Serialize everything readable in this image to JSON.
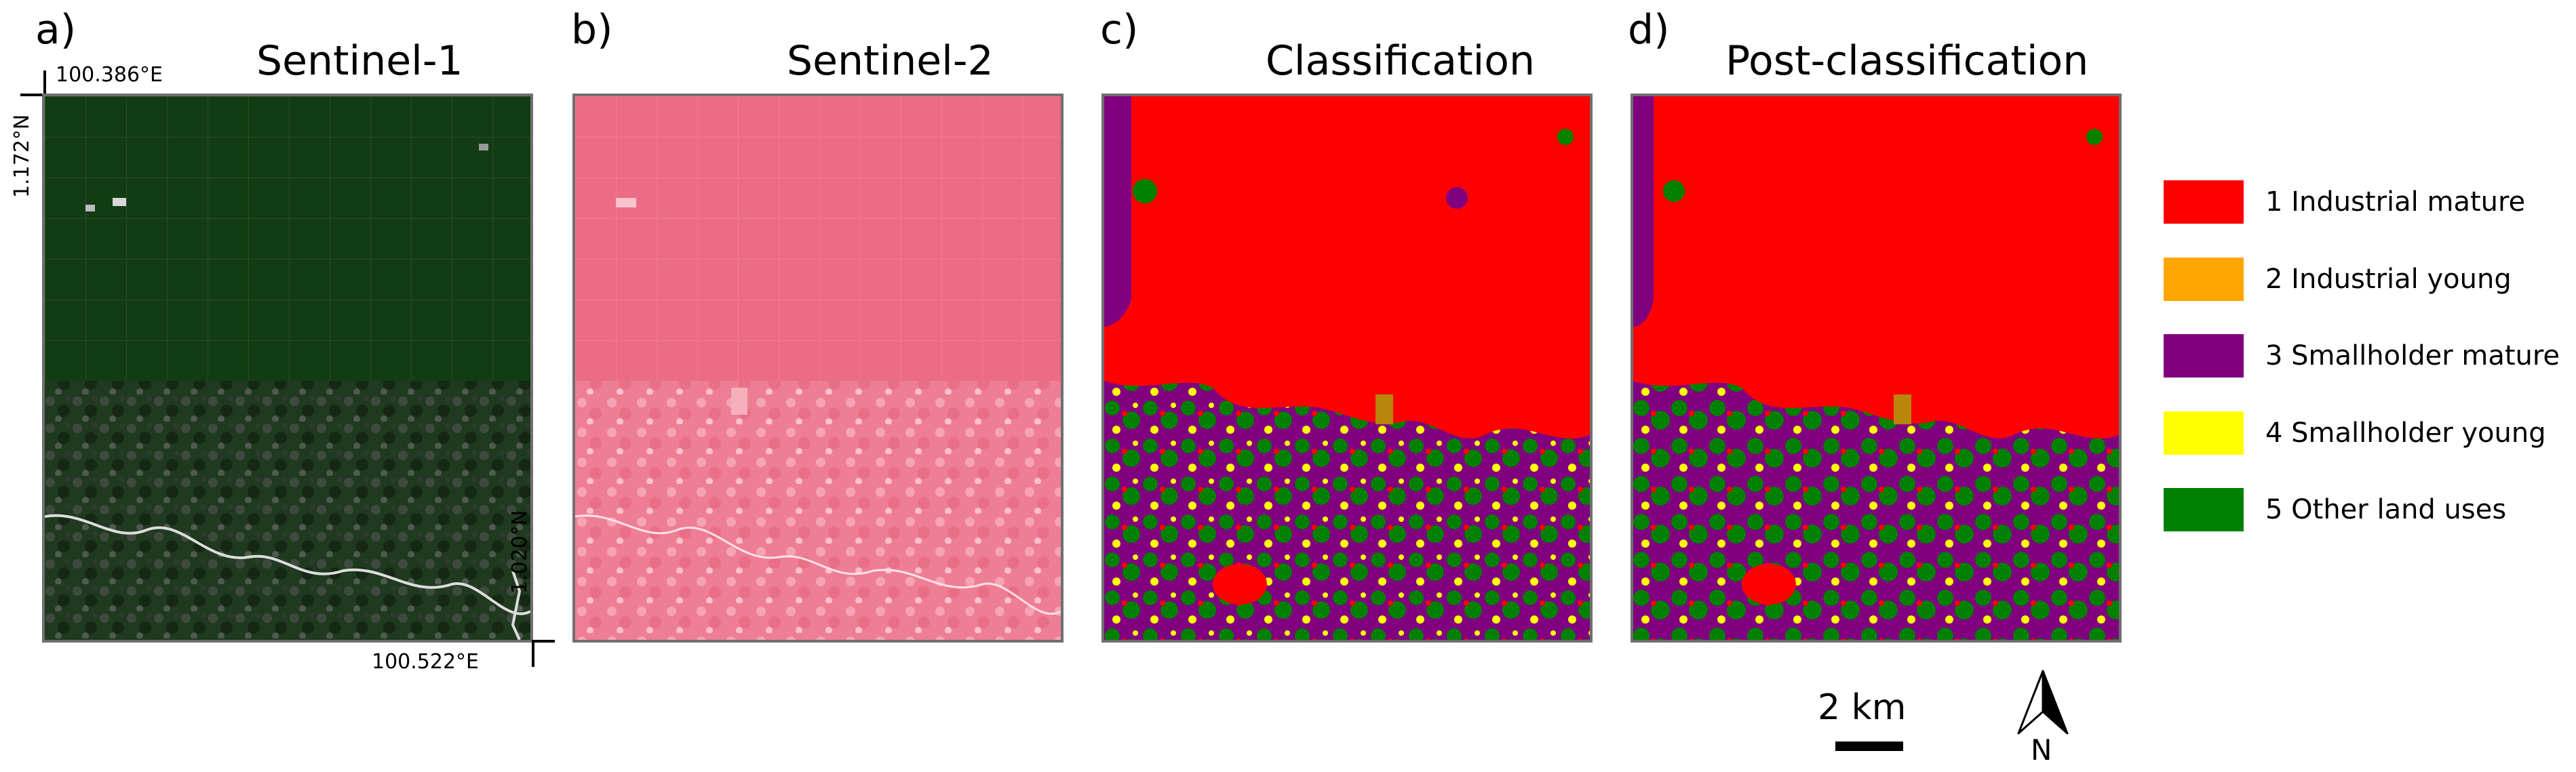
{
  "panels": [
    {
      "letter": "a)",
      "title": "Sentinel-1"
    },
    {
      "letter": "b)",
      "title": "Sentinel-2"
    },
    {
      "letter": "c)",
      "title": "Classification"
    },
    {
      "letter": "d)",
      "title": "Post-classification"
    }
  ],
  "coordinates": {
    "top_left_lon": "100.386°E",
    "top_left_lat": "1.172°N",
    "bottom_right_lat": "1.020°N",
    "bottom_right_lon": "100.522°E"
  },
  "legend": [
    {
      "label": "1 Industrial mature",
      "color": "#ff0000"
    },
    {
      "label": "2 Industrial young",
      "color": "#ffa500"
    },
    {
      "label": "3 Smallholder mature",
      "color": "#800080"
    },
    {
      "label": "4 Smallholder young",
      "color": "#ffff00"
    },
    {
      "label": "5 Other land uses",
      "color": "#008000"
    }
  ],
  "scale_bar": {
    "label": "2 km"
  },
  "north_arrow": {
    "label": "N"
  }
}
